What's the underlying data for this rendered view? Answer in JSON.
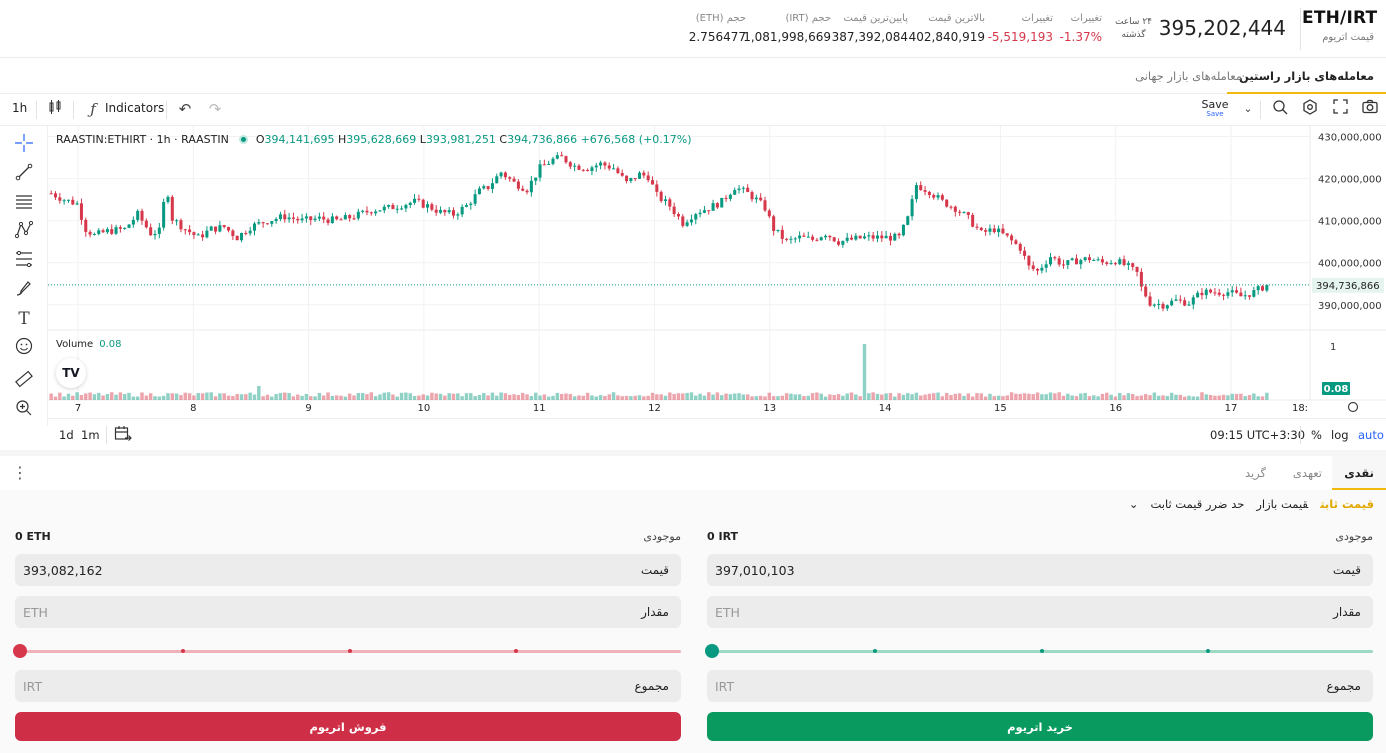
{
  "header": {
    "pair": "ETH/IRT",
    "pair_subtitle": "قیمت اتریوم",
    "last_price": "395,202,444",
    "period": {
      "line1": "۲۴ ساعت",
      "line2": "گذشته"
    },
    "stats": [
      {
        "label": "تغییرات",
        "value": "-1.37%",
        "negative": true
      },
      {
        "label": "تغییرات",
        "value": "-5,519,193",
        "negative": true
      },
      {
        "label": "بالاترین قیمت",
        "value": "402,840,919",
        "negative": false
      },
      {
        "label": "پایین‌ترین قیمت",
        "value": "387,392,084",
        "negative": false
      },
      {
        "label": "حجم (IRT)",
        "value": "1,081,998,669",
        "negative": false
      },
      {
        "label": "حجم (ETH)",
        "value": "2.756477",
        "negative": false
      }
    ]
  },
  "market_tabs": [
    {
      "label": "معامله‌های بازار راستین",
      "active": true
    },
    {
      "label": "معامله‌های بازار جهانی",
      "active": false
    }
  ],
  "toolbar": {
    "interval": "1h",
    "indicators_label": "Indicators",
    "save_label": "Save",
    "save_sub": "Save"
  },
  "legend": {
    "symbol": "RAASTIN:ETHIRT · 1h · RAASTIN",
    "open": "394,141,695",
    "high": "395,628,669",
    "low": "393,981,251",
    "close": "394,736,866",
    "change": "+676,568 (+0.17%)"
  },
  "volume": {
    "label": "Volume",
    "value": "0.08",
    "axis_label": "1"
  },
  "chart_bottom": {
    "ranges": [
      "1d",
      "1m"
    ],
    "time": "09:15 UTC+3:30",
    "percent": "%",
    "log": "log",
    "auto": "auto"
  },
  "colors": {
    "up": "#089981",
    "down": "#d6374a",
    "accent": "#f0b90b"
  },
  "chart_data": {
    "type": "candlestick",
    "symbol": "RAASTIN:ETHIRT",
    "interval": "1h",
    "x_ticks": [
      "7",
      "8",
      "9",
      "10",
      "11",
      "12",
      "13",
      "14",
      "15",
      "16",
      "17",
      "18:"
    ],
    "y_ticks": [
      "430,000,000",
      "420,000,000",
      "410,000,000",
      "400,000,000",
      "390,000,000"
    ],
    "ylim": [
      384000000,
      432500000
    ],
    "last_price_label": "394,736,866",
    "last_price": 394736866,
    "volume_last_label": "0.08",
    "volume_ylim": [
      0,
      1.25
    ],
    "grid": true,
    "close_path": [
      [
        0,
        416500000
      ],
      [
        3,
        415000000
      ],
      [
        6,
        414000000
      ],
      [
        8,
        408000000
      ],
      [
        10,
        406500000
      ],
      [
        13,
        407500000
      ],
      [
        17,
        408000000
      ],
      [
        20,
        411500000
      ],
      [
        23,
        407000000
      ],
      [
        25,
        407500000
      ],
      [
        26,
        414000000
      ],
      [
        27,
        416500000
      ],
      [
        28,
        410500000
      ],
      [
        31,
        408000000
      ],
      [
        34,
        406000000
      ],
      [
        37,
        408000000
      ],
      [
        40,
        408500000
      ],
      [
        43,
        406000000
      ],
      [
        46,
        408500000
      ],
      [
        50,
        410000000
      ],
      [
        54,
        411000000
      ],
      [
        58,
        410000000
      ],
      [
        62,
        410500000
      ],
      [
        66,
        410000000
      ],
      [
        70,
        411000000
      ],
      [
        74,
        412500000
      ],
      [
        78,
        413000000
      ],
      [
        82,
        414000000
      ],
      [
        84,
        414500000
      ],
      [
        87,
        413500000
      ],
      [
        90,
        412000000
      ],
      [
        93,
        411500000
      ],
      [
        96,
        413500000
      ],
      [
        99,
        417000000
      ],
      [
        101,
        418000000
      ],
      [
        104,
        421500000
      ],
      [
        107,
        419000000
      ],
      [
        110,
        417500000
      ],
      [
        113,
        422500000
      ],
      [
        116,
        424500000
      ],
      [
        118,
        425000000
      ],
      [
        121,
        423000000
      ],
      [
        124,
        422500000
      ],
      [
        127,
        423500000
      ],
      [
        130,
        422500000
      ],
      [
        133,
        419000000
      ],
      [
        136,
        421000000
      ],
      [
        138,
        420500000
      ],
      [
        140,
        416000000
      ],
      [
        143,
        413500000
      ],
      [
        146,
        409500000
      ],
      [
        149,
        412000000
      ],
      [
        152,
        413000000
      ],
      [
        155,
        414500000
      ],
      [
        158,
        418000000
      ],
      [
        161,
        416500000
      ],
      [
        163,
        415000000
      ],
      [
        165,
        413000000
      ],
      [
        167,
        408000000
      ],
      [
        170,
        405000000
      ],
      [
        173,
        406000000
      ],
      [
        176,
        405500000
      ],
      [
        179,
        407000000
      ],
      [
        182,
        405000000
      ],
      [
        185,
        405500000
      ],
      [
        188,
        406000000
      ],
      [
        191,
        406000000
      ],
      [
        194,
        406000000
      ],
      [
        196,
        406000000
      ],
      [
        198,
        410500000
      ],
      [
        200,
        418500000
      ],
      [
        203,
        417000000
      ],
      [
        206,
        414500000
      ],
      [
        209,
        413000000
      ],
      [
        212,
        410500000
      ],
      [
        215,
        407000000
      ],
      [
        218,
        408000000
      ],
      [
        221,
        406000000
      ],
      [
        224,
        403500000
      ],
      [
        226,
        399000000
      ],
      [
        228,
        398000000
      ],
      [
        231,
        401500000
      ],
      [
        234,
        399500000
      ],
      [
        237,
        400500000
      ],
      [
        240,
        401000000
      ],
      [
        243,
        400000000
      ],
      [
        246,
        400500000
      ],
      [
        249,
        399000000
      ],
      [
        251,
        397500000
      ],
      [
        252,
        394000000
      ],
      [
        254,
        390500000
      ],
      [
        257,
        390000000
      ],
      [
        260,
        391000000
      ],
      [
        263,
        390500000
      ],
      [
        266,
        393000000
      ],
      [
        269,
        393000000
      ],
      [
        272,
        393000000
      ],
      [
        275,
        392000000
      ],
      [
        278,
        393000000
      ],
      [
        281,
        394736866
      ]
    ]
  },
  "order": {
    "tabs": [
      {
        "label": "نقدی",
        "active": true
      },
      {
        "label": "تعهدی",
        "active": false
      },
      {
        "label": "گرید",
        "active": false
      }
    ],
    "order_types": [
      {
        "label": "قیمت ثابت",
        "active": true
      },
      {
        "label": "قیمت بازار",
        "active": false
      },
      {
        "label": "حد ضرر قیمت ثابت",
        "active": false
      }
    ],
    "buy": {
      "balance_label": "موجودی",
      "balance": "0 IRT",
      "price_label": "قیمت",
      "price": "397,010,103",
      "amount_label": "مقدار",
      "amount_placeholder": "ETH",
      "total_label": "مجموع",
      "total_placeholder": "IRT",
      "slider_fraction": 0,
      "button": "خرید اتریوم"
    },
    "sell": {
      "balance_label": "موجودی",
      "balance": "0 ETH",
      "price_label": "قیمت",
      "price": "393,082,162",
      "amount_label": "مقدار",
      "amount_placeholder": "ETH",
      "total_label": "مجموع",
      "total_placeholder": "IRT",
      "slider_fraction": 0,
      "button": "فروش اتریوم"
    }
  }
}
